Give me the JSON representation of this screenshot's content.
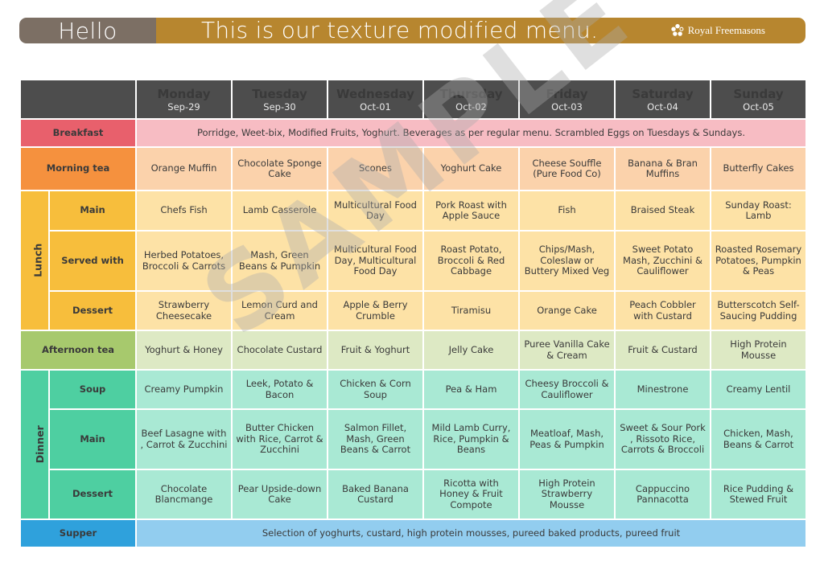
{
  "header": {
    "greeting": "Hello",
    "title": "This is our texture modified menu.",
    "logo_text": "Royal Freemasons"
  },
  "days": [
    {
      "name": "Monday",
      "date": "Sep-29"
    },
    {
      "name": "Tuesday",
      "date": "Sep-30"
    },
    {
      "name": "Wednesday",
      "date": "Oct-01"
    },
    {
      "name": "Thursday",
      "date": "Oct-02"
    },
    {
      "name": "Friday",
      "date": "Oct-03"
    },
    {
      "name": "Saturday",
      "date": "Oct-04"
    },
    {
      "name": "Sunday",
      "date": "Oct-05"
    }
  ],
  "breakfast": {
    "label": "Breakfast",
    "text": "Porridge, Weet-bix, Modified Fruits, Yoghurt. Beverages as per regular menu. Scrambled Eggs on Tuesdays & Sundays."
  },
  "morning_tea": {
    "label": "Morning tea",
    "items": [
      "Orange Muffin",
      "Chocolate Sponge Cake",
      "Scones",
      "Yoghurt Cake",
      "Cheese Souffle (Pure Food Co)",
      "Banana & Bran Muffins",
      "Butterfly Cakes"
    ]
  },
  "lunch": {
    "label": "Lunch",
    "main": {
      "label": "Main",
      "items": [
        "Chefs Fish",
        "Lamb Casserole",
        "Multicultural Food Day",
        "Pork Roast with Apple Sauce",
        "Fish",
        "Braised Steak",
        "Sunday Roast: Lamb"
      ]
    },
    "served_with": {
      "label": "Served with",
      "items": [
        "Herbed Potatoes, Broccoli & Carrots",
        "Mash, Green Beans & Pumpkin",
        "Multicultural Food Day, Multicultural Food Day",
        "Roast Potato, Broccoli & Red Cabbage",
        "Chips/Mash, Coleslaw or Buttery Mixed Veg",
        "Sweet Potato Mash, Zucchini & Cauliflower",
        "Roasted Rosemary Potatoes, Pumpkin & Peas"
      ]
    },
    "dessert": {
      "label": "Dessert",
      "items": [
        "Strawberry Cheesecake",
        "Lemon Curd and Cream",
        "Apple & Berry Crumble",
        "Tiramisu",
        "Orange Cake",
        "Peach Cobbler with Custard",
        "Butterscotch Self-Saucing Pudding"
      ]
    }
  },
  "afternoon_tea": {
    "label": "Afternoon tea",
    "items": [
      "Yoghurt & Honey",
      "Chocolate Custard",
      "Fruit & Yoghurt",
      "Jelly Cake",
      "Puree Vanilla Cake & Cream",
      "Fruit & Custard",
      "High Protein Mousse"
    ]
  },
  "dinner": {
    "label": "Dinner",
    "soup": {
      "label": "Soup",
      "items": [
        "Creamy Pumpkin",
        "Leek, Potato & Bacon",
        "Chicken & Corn Soup",
        "Pea & Ham",
        "Cheesy Broccoli & Cauliflower",
        "Minestrone",
        "Creamy Lentil"
      ]
    },
    "main": {
      "label": "Main",
      "items": [
        "Beef Lasagne with , Carrot & Zucchini",
        "Butter Chicken with Rice, Carrot & Zucchini",
        "Salmon Fillet, Mash, Green Beans & Carrot",
        "Mild Lamb Curry, Rice, Pumpkin & Beans",
        "Meatloaf, Mash, Peas & Pumpkin",
        "Sweet & Sour Pork , Rissoto Rice, Carrots & Broccoli",
        "Chicken, Mash, Beans & Carrot"
      ]
    },
    "dessert": {
      "label": "Dessert",
      "items": [
        "Chocolate Blancmange",
        "Pear Upside-down Cake",
        "Baked Banana Custard",
        "Ricotta with Honey & Fruit Compote",
        "High Protein Strawberry Mousse",
        "Cappuccino Pannacotta",
        "Rice Pudding & Stewed Fruit"
      ]
    }
  },
  "supper": {
    "label": "Supper",
    "text": "Selection of yoghurts, custard, high protein mousses, pureed baked products, pureed fruit"
  },
  "watermark": "SAMPLE",
  "colors": {
    "banner_left": "#7c6f64",
    "banner_right": "#b7862f",
    "header_row": "#4d4d4d",
    "breakfast": "#e8606c",
    "morning_tea": "#f5913e",
    "lunch": "#f7be3c",
    "afternoon_tea": "#a7c96d",
    "dinner": "#4ecfa1",
    "supper": "#2fa1dc"
  }
}
